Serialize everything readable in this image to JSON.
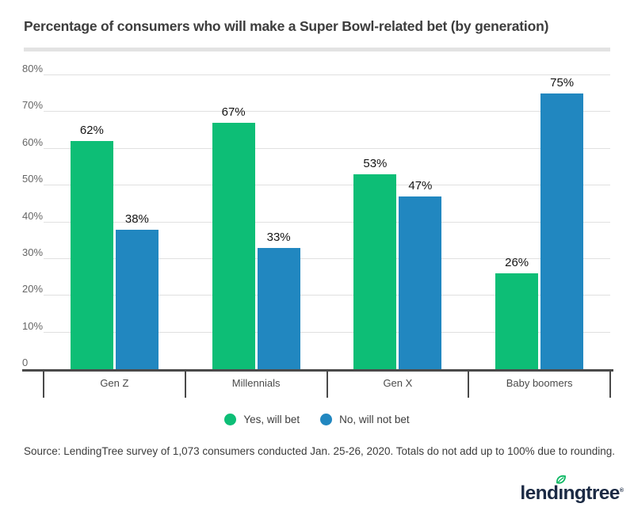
{
  "title": "Percentage of consumers who will make a Super Bowl-related bet (by generation)",
  "chart_data": {
    "type": "bar",
    "categories": [
      "Gen Z",
      "Millennials",
      "Gen X",
      "Baby boomers"
    ],
    "series": [
      {
        "name": "Yes, will bet",
        "color": "#0dbe76",
        "values": [
          62,
          67,
          53,
          26
        ]
      },
      {
        "name": "No, will not bet",
        "color": "#2187c0",
        "values": [
          38,
          33,
          47,
          75
        ]
      }
    ],
    "value_suffix": "%",
    "xlabel": "",
    "ylabel": "",
    "ylim": [
      0,
      80
    ],
    "y_tick_step": 10,
    "y_tick_labels": [
      "0",
      "10%",
      "20%",
      "30%",
      "40%",
      "50%",
      "60%",
      "70%",
      "80%"
    ],
    "grid": true,
    "data_labels": true,
    "legend_position": "bottom"
  },
  "source_note": "Source: LendingTree survey of 1,073 consumers conducted Jan. 25-26, 2020. Totals do not add up to 100% due to rounding.",
  "logo": {
    "text": "lendingtree",
    "trademark": "®",
    "color": "#1b2a44",
    "leaf_color": "#0db864"
  },
  "colors": {
    "series_yes": "#0dbe76",
    "series_no": "#2187c0",
    "axis": "#4a4a4a",
    "gridline": "#e0e0e0",
    "title_text": "#3d3d3d",
    "divider": "#e3e3e3"
  }
}
